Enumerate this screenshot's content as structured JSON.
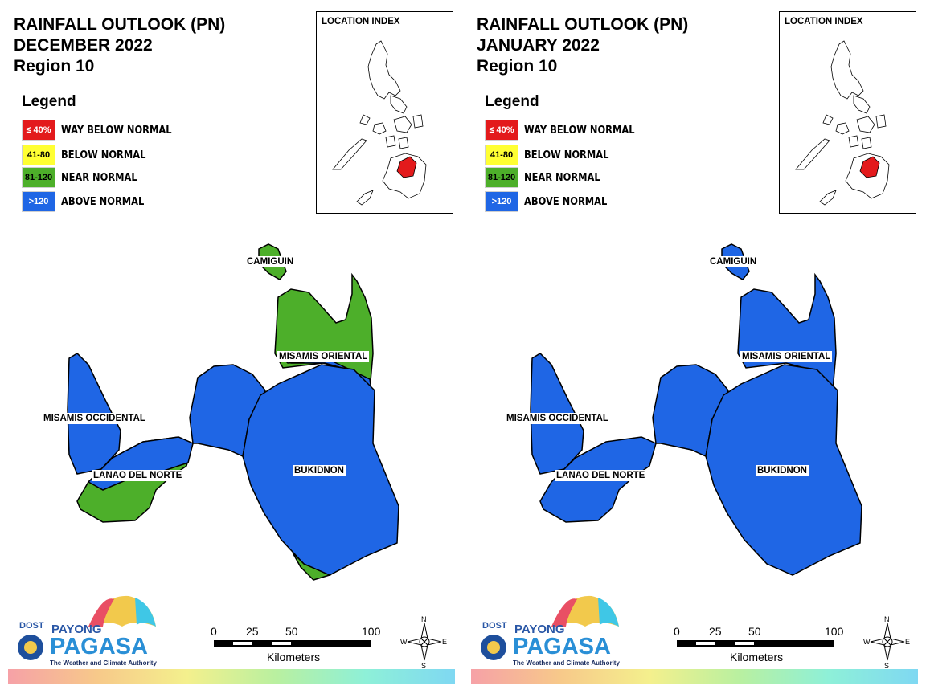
{
  "panels": [
    {
      "title_line1": "RAINFALL OUTLOOK (PN)",
      "title_line2": "DECEMBER 2022",
      "title_line3": "Region 10",
      "legend_title": "Legend",
      "legend": [
        {
          "swatch": "≤ 40%",
          "label": "WAY BELOW NORMAL",
          "color": "#e31a1c",
          "text_color": "#ffffff"
        },
        {
          "swatch": "41-80",
          "label": "BELOW NORMAL",
          "color": "#ffff33",
          "text_color": "#000000"
        },
        {
          "swatch": "81-120",
          "label": "NEAR NORMAL",
          "color": "#4daf2a",
          "text_color": "#000000"
        },
        {
          "swatch": ">120",
          "label": "ABOVE NORMAL",
          "color": "#1f66e5",
          "text_color": "#ffffff"
        }
      ],
      "location_index_title": "LOCATION INDEX",
      "provinces": {
        "camiguin": {
          "label": "CAMIGUIN",
          "category": "NEAR NORMAL"
        },
        "misamis_oriental": {
          "label": "MISAMIS ORIENTAL",
          "category": "ABOVE NORMAL / NEAR NORMAL"
        },
        "misamis_occidental": {
          "label": "MISAMIS OCCIDENTAL",
          "category": "ABOVE NORMAL"
        },
        "lanao_del_norte": {
          "label": "LANAO DEL NORTE",
          "category": "NEAR NORMAL / ABOVE NORMAL"
        },
        "bukidnon": {
          "label": "BUKIDNON",
          "category": "ABOVE NORMAL"
        }
      },
      "scale": {
        "ticks": [
          "0",
          "25",
          "50",
          "100"
        ],
        "unit": "Kilometers"
      },
      "compass": {
        "n": "N",
        "s": "S",
        "e": "E",
        "w": "W"
      },
      "logo": {
        "dost": "DOST",
        "payong": "PAYONG",
        "pagasa": "PAGASA",
        "tagline": "The Weather and Climate Authority"
      }
    },
    {
      "title_line1": "RAINFALL OUTLOOK (PN)",
      "title_line2": "JANUARY 2022",
      "title_line3": "Region 10",
      "legend_title": "Legend",
      "legend": [
        {
          "swatch": "≤ 40%",
          "label": "WAY BELOW NORMAL",
          "color": "#e31a1c",
          "text_color": "#ffffff"
        },
        {
          "swatch": "41-80",
          "label": "BELOW NORMAL",
          "color": "#ffff33",
          "text_color": "#000000"
        },
        {
          "swatch": "81-120",
          "label": "NEAR NORMAL",
          "color": "#4daf2a",
          "text_color": "#000000"
        },
        {
          "swatch": ">120",
          "label": "ABOVE NORMAL",
          "color": "#1f66e5",
          "text_color": "#ffffff"
        }
      ],
      "location_index_title": "LOCATION INDEX",
      "provinces": {
        "camiguin": {
          "label": "CAMIGUIN",
          "category": "ABOVE NORMAL"
        },
        "misamis_oriental": {
          "label": "MISAMIS ORIENTAL",
          "category": "ABOVE NORMAL"
        },
        "misamis_occidental": {
          "label": "MISAMIS OCCIDENTAL",
          "category": "ABOVE NORMAL"
        },
        "lanao_del_norte": {
          "label": "LANAO DEL NORTE",
          "category": "ABOVE NORMAL"
        },
        "bukidnon": {
          "label": "BUKIDNON",
          "category": "ABOVE NORMAL"
        }
      },
      "scale": {
        "ticks": [
          "0",
          "25",
          "50",
          "100"
        ],
        "unit": "Kilometers"
      },
      "compass": {
        "n": "N",
        "s": "S",
        "e": "E",
        "w": "W"
      },
      "logo": {
        "dost": "DOST",
        "payong": "PAYONG",
        "pagasa": "PAGASA",
        "tagline": "The Weather and Climate Authority"
      }
    }
  ],
  "colors": {
    "above_normal": "#1f66e5",
    "near_normal": "#4daf2a",
    "highlight_region": "#e31a1c"
  }
}
